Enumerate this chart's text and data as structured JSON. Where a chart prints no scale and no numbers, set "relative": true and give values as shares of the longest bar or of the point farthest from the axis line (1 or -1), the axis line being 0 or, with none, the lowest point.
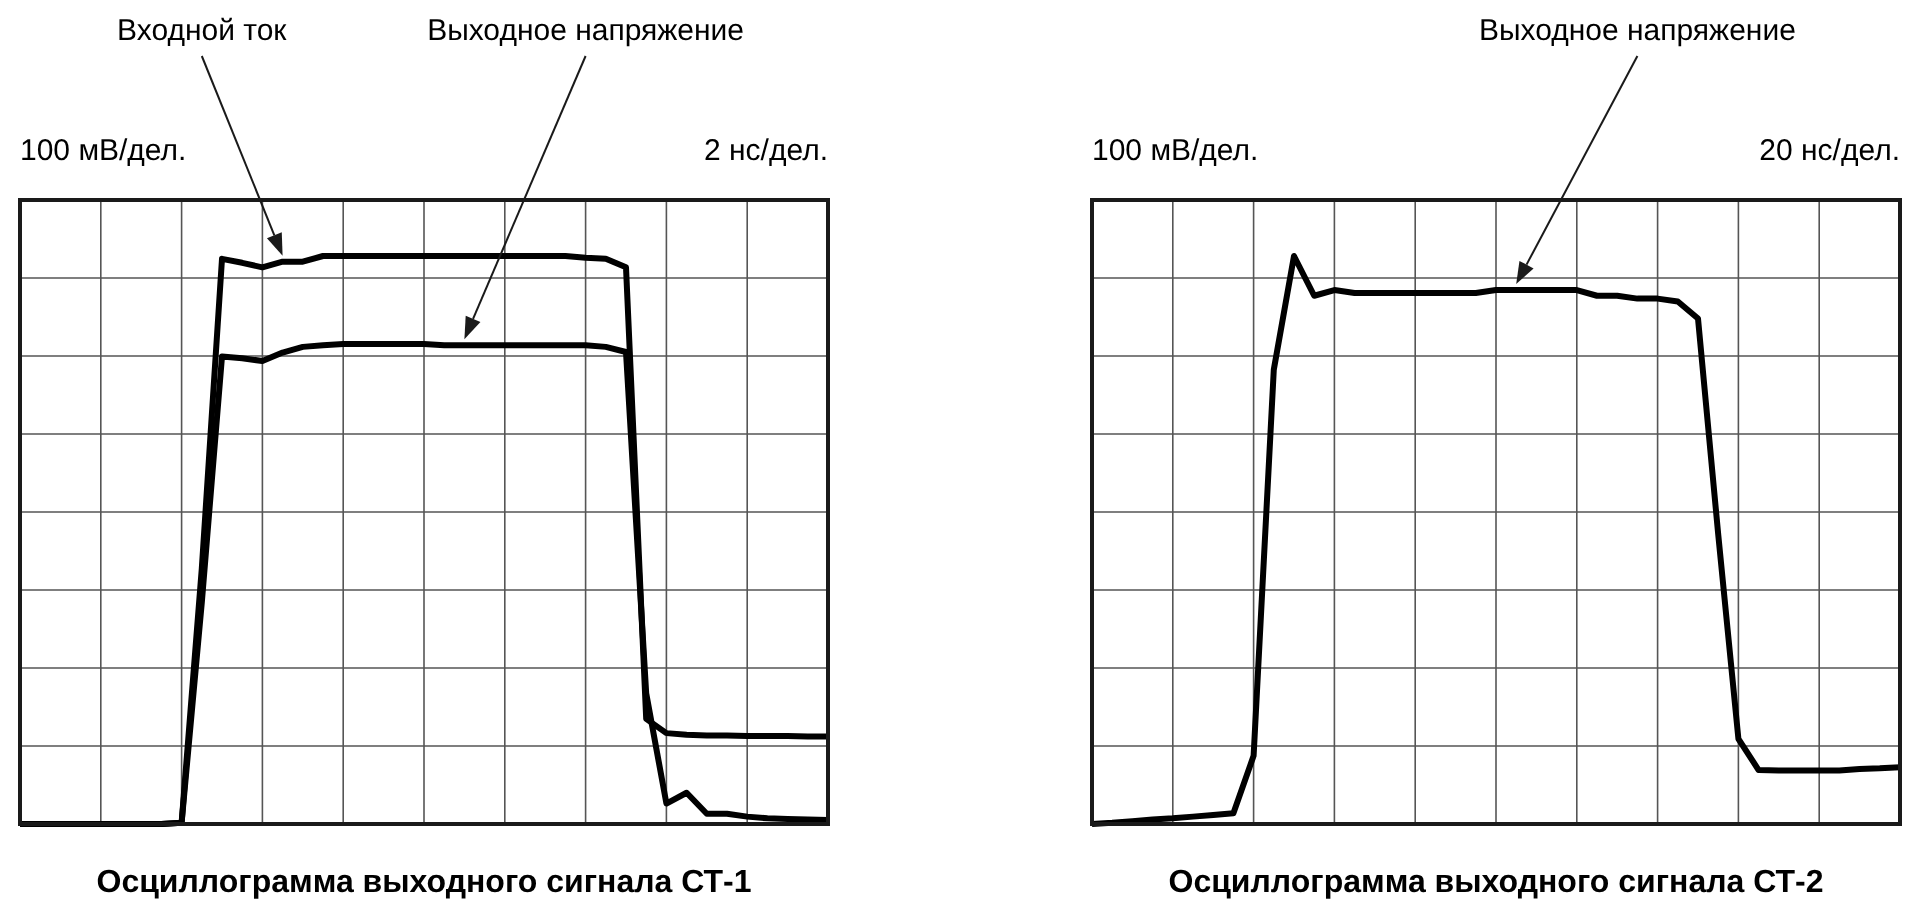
{
  "chart_data": [
    {
      "type": "line",
      "title": "Осциллограмма выходного сигнала СТ-1",
      "relative": true,
      "grid": true,
      "legend": false,
      "marker": "none",
      "line_style": "solid",
      "categories": [
        null,
        null,
        null,
        null,
        null,
        null,
        null,
        null,
        null,
        null,
        null,
        null,
        null,
        null,
        null,
        null,
        null,
        null,
        null,
        null,
        null,
        null,
        null,
        null,
        null,
        null,
        null,
        null,
        null,
        null,
        null,
        null,
        null,
        null,
        null,
        null,
        null,
        null,
        null,
        null,
        null
      ],
      "annotations": [
        {
          "text": "Входной ток"
        },
        {
          "text": "Выходное напряжение"
        },
        "100 мВ/дел.",
        "2 нс/дел."
      ],
      "series": [
        {
          "color": "#000000",
          "values": [
            0,
            0,
            0,
            0,
            0,
            0,
            0,
            0,
            0.002,
            0.45,
            0.995,
            0.988,
            0.98,
            0.99,
            0.99,
            1,
            1,
            1,
            1,
            1,
            1,
            1,
            1,
            1,
            1,
            1,
            1,
            1,
            0.997,
            0.995,
            0.98,
            0.185,
            0.16,
            0.157,
            0.156,
            0.156,
            0.155,
            0.155,
            0.155,
            0.154,
            0.154
          ]
        },
        {
          "color": "#000000",
          "values": [
            0,
            0,
            0,
            0,
            0,
            0,
            0,
            0,
            0.002,
            0.39,
            0.823,
            0.82,
            0.815,
            0.83,
            0.84,
            0.843,
            0.845,
            0.845,
            0.845,
            0.845,
            0.845,
            0.843,
            0.843,
            0.843,
            0.843,
            0.843,
            0.843,
            0.843,
            0.843,
            0.84,
            0.831,
            0.23,
            0.036,
            0.055,
            0.018,
            0.018,
            0.013,
            0.01,
            0.009,
            0.008,
            0.007
          ]
        }
      ]
    },
    {
      "type": "line",
      "title": "Осциллограмма выходного сигнала СТ-2",
      "relative": true,
      "grid": true,
      "legend": false,
      "marker": "none",
      "line_style": "solid",
      "categories": [
        null,
        null,
        null,
        null,
        null,
        null,
        null,
        null,
        null,
        null,
        null,
        null,
        null,
        null,
        null,
        null,
        null,
        null,
        null,
        null,
        null,
        null,
        null,
        null,
        null,
        null,
        null,
        null,
        null,
        null,
        null,
        null,
        null,
        null,
        null,
        null,
        null,
        null,
        null,
        null,
        null
      ],
      "annotations": [
        {
          "text": "Выходное напряжение"
        },
        "100 мВ/дел.",
        "20 нс/дел."
      ],
      "series": [
        {
          "color": "#000000",
          "values": [
            0,
            0.002,
            0.005,
            0.008,
            0.01,
            0.013,
            0.016,
            0.019,
            0.12,
            0.8,
            1,
            0.93,
            0.94,
            0.935,
            0.935,
            0.935,
            0.935,
            0.935,
            0.935,
            0.935,
            0.94,
            0.94,
            0.94,
            0.94,
            0.94,
            0.93,
            0.93,
            0.925,
            0.925,
            0.92,
            0.89,
            0.51,
            0.15,
            0.095,
            0.094,
            0.094,
            0.094,
            0.094,
            0.097,
            0.098,
            0.1
          ]
        }
      ]
    }
  ]
}
